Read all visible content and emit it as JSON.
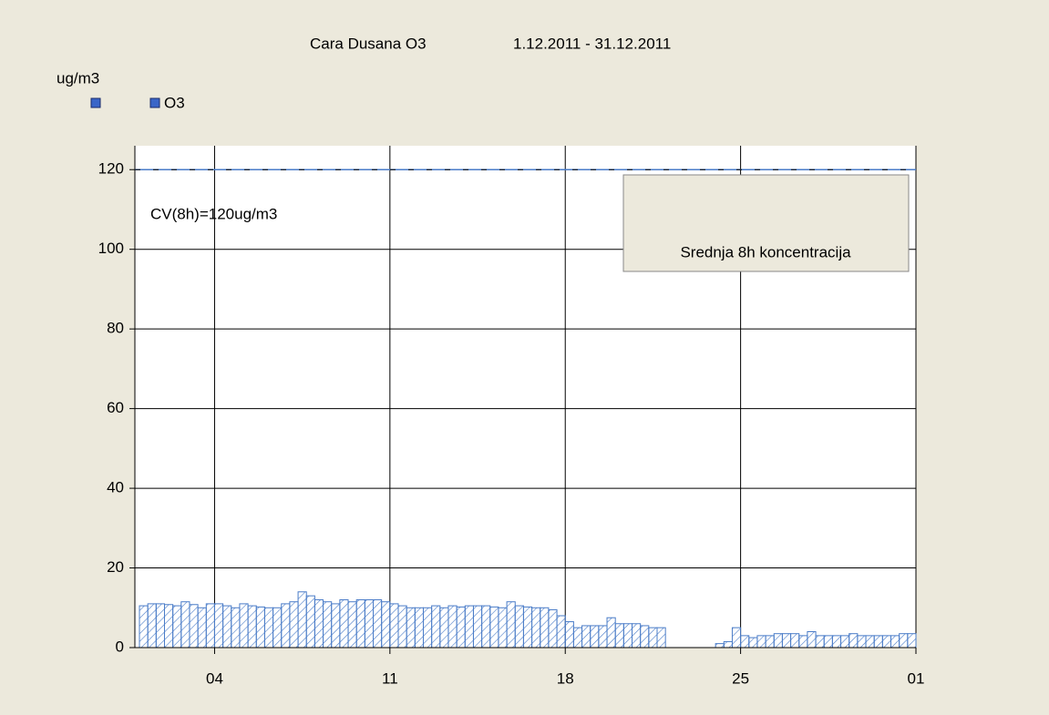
{
  "chart_data": {
    "type": "bar",
    "title": "Cara Dusana O3",
    "subtitle": "1.12.2011 - 31.12.2011",
    "y_label": "ug/m3",
    "legend": [
      "O3"
    ],
    "color": "#4a7cc8",
    "categories": [
      null,
      null,
      null,
      null,
      null,
      null,
      null,
      null,
      null,
      null,
      null,
      null,
      null,
      null,
      null,
      null,
      null,
      null,
      null,
      null,
      null,
      null,
      null,
      null,
      null,
      null,
      null,
      null,
      null,
      null,
      null,
      null,
      null,
      null,
      null,
      null,
      null,
      null,
      null,
      null,
      null,
      null,
      null,
      null,
      null,
      null,
      null,
      null,
      null,
      null,
      null,
      null,
      null,
      null,
      null,
      null,
      null,
      null,
      null,
      null,
      null,
      null,
      null,
      null,
      null,
      null,
      null,
      null,
      null,
      null,
      null,
      null,
      null,
      null,
      null,
      null,
      null,
      null,
      null,
      null,
      null,
      null,
      null,
      null,
      null,
      null,
      null,
      null,
      null,
      null,
      null,
      null,
      null
    ],
    "values": [
      10.5,
      11,
      11,
      10.8,
      10.5,
      11.5,
      10.8,
      10,
      11,
      11,
      10.5,
      10,
      11,
      10.5,
      10.2,
      10,
      10,
      11,
      11.5,
      14,
      13,
      12,
      11.5,
      11,
      12,
      11.5,
      12,
      12,
      12,
      11.5,
      11,
      10.5,
      10,
      10,
      10,
      10.5,
      10,
      10.5,
      10.2,
      10.5,
      10.5,
      10.5,
      10.2,
      10,
      11.5,
      10.5,
      10.2,
      10,
      10,
      9.5,
      8,
      6.5,
      5,
      5.5,
      5.5,
      5.5,
      7.5,
      6,
      6,
      6,
      5.5,
      5,
      5,
      null,
      null,
      null,
      null,
      null,
      null,
      1,
      1.5,
      5,
      3,
      2.5,
      3,
      3,
      3.5,
      3.5,
      3.5,
      3,
      4,
      3,
      3,
      3,
      3,
      3.5,
      3,
      3,
      3,
      3,
      3,
      3.5,
      3.5
    ],
    "xlim": [
      0,
      93
    ],
    "xticks": [
      {
        "value": 9,
        "label": "04"
      },
      {
        "value": 30,
        "label": "11"
      },
      {
        "value": 51,
        "label": "18"
      },
      {
        "value": 72,
        "label": "25"
      },
      {
        "value": 93,
        "label": "01"
      }
    ],
    "ylim": [
      0,
      126
    ],
    "yticks": [
      0,
      20,
      40,
      60,
      80,
      100,
      120
    ],
    "grid": true,
    "threshold": {
      "value": 120,
      "label": "CV(8h)=120ug/m3"
    },
    "annotation": "Srednja 8h koncentracija"
  }
}
